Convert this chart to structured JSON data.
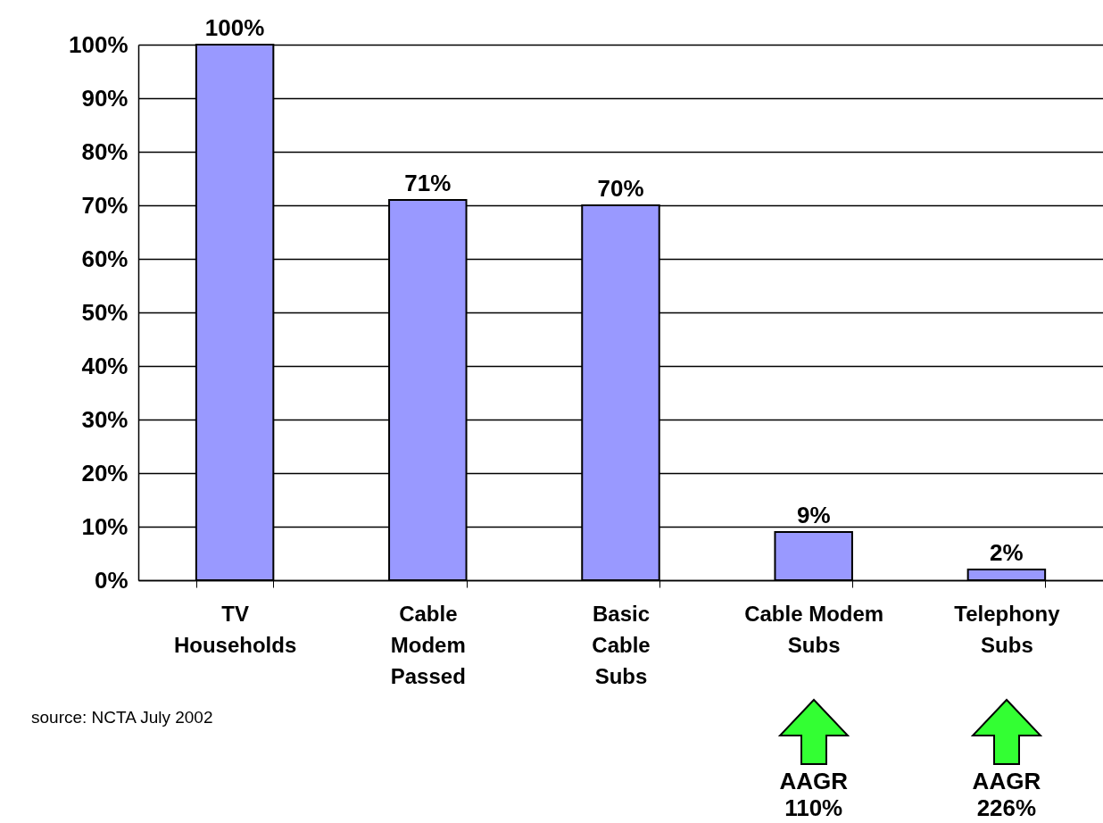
{
  "chart_data": {
    "type": "bar",
    "categories": [
      "TV\nHouseholds",
      "Cable\nModem\nPassed",
      "Basic\nCable\nSubs",
      "Cable Modem\nSubs",
      "Telephony\nSubs"
    ],
    "values": [
      100,
      71,
      70,
      9,
      2
    ],
    "color": "#9999ff",
    "value_labels": [
      "100%",
      "71%",
      "70%",
      "9%",
      "2%"
    ],
    "ylim": [
      0,
      100
    ],
    "yticks": [
      {
        "value": 0,
        "label": "0%"
      },
      {
        "value": 10,
        "label": "10%"
      },
      {
        "value": 20,
        "label": "20%"
      },
      {
        "value": 30,
        "label": "30%"
      },
      {
        "value": 40,
        "label": "40%"
      },
      {
        "value": 50,
        "label": "50%"
      },
      {
        "value": 60,
        "label": "60%"
      },
      {
        "value": 70,
        "label": "70%"
      },
      {
        "value": 80,
        "label": "80%"
      },
      {
        "value": 90,
        "label": "90%"
      },
      {
        "value": 100,
        "label": "100%"
      }
    ],
    "grid": "y",
    "annotations": [
      "source: NCTA July 2002",
      "AAGR\n110%",
      "AAGR\n226%"
    ]
  }
}
